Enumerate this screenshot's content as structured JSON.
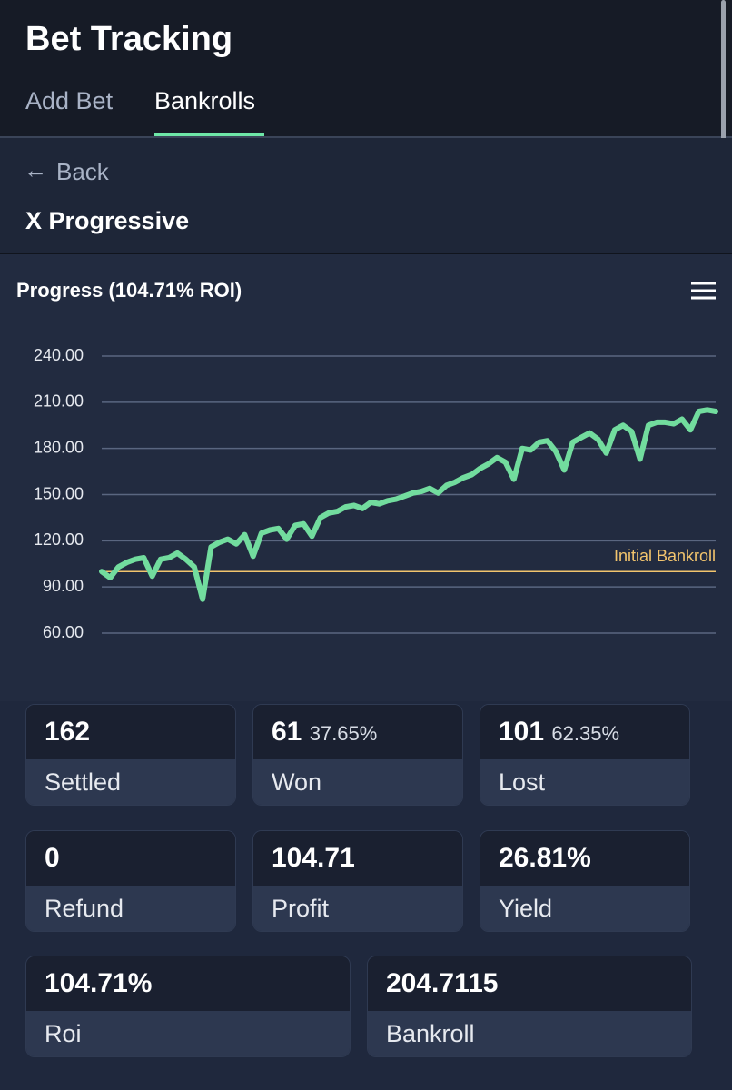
{
  "header": {
    "title": "Bet Tracking",
    "tabs": [
      "Add Bet",
      "Bankrolls"
    ],
    "active_tab": "Bankrolls"
  },
  "nav": {
    "back": "Back",
    "page_title": "X Progressive"
  },
  "chart_data": {
    "type": "line",
    "title": "Progress (104.71% ROI)",
    "series": [
      {
        "name": "Bankroll",
        "color": "#72dc9e",
        "values": [
          100,
          96,
          103,
          106,
          108,
          109,
          97,
          108,
          109,
          112,
          108,
          103,
          82,
          116,
          119,
          121,
          118,
          124,
          110,
          125,
          127,
          128,
          121,
          130,
          131,
          123,
          135,
          138,
          139,
          142,
          143,
          141,
          145,
          144,
          146,
          147,
          149,
          151,
          152,
          154,
          151,
          156,
          158,
          161,
          163,
          167,
          170,
          174,
          171,
          160,
          180,
          179,
          184,
          185,
          178,
          166,
          184,
          187,
          190,
          186,
          177,
          192,
          195,
          191,
          173,
          195,
          197,
          197,
          196,
          199,
          192,
          204,
          205,
          204
        ]
      }
    ],
    "ylim": [
      60,
      240
    ],
    "yticks": [
      {
        "value": 60,
        "label": "60.00"
      },
      {
        "value": 90,
        "label": "90.00"
      },
      {
        "value": 120,
        "label": "120.00"
      },
      {
        "value": 150,
        "label": "150.00"
      },
      {
        "value": 180,
        "label": "180.00"
      },
      {
        "value": 210,
        "label": "210.00"
      },
      {
        "value": 240,
        "label": "240.00"
      }
    ],
    "grid": true,
    "reference_line": {
      "value": 100,
      "label": "Initial Bankroll",
      "color": "#f2c46d"
    }
  },
  "stats": [
    {
      "value": "162",
      "label": "Settled"
    },
    {
      "value": "61",
      "percent": "37.65%",
      "label": "Won"
    },
    {
      "value": "101",
      "percent": "62.35%",
      "label": "Lost"
    },
    {
      "value": "0",
      "label": "Refund"
    },
    {
      "value": "104.71",
      "label": "Profit"
    },
    {
      "value": "26.81%",
      "label": "Yield"
    },
    {
      "value": "104.71%",
      "label": "Roi"
    },
    {
      "value": "204.7115",
      "label": "Bankroll"
    }
  ]
}
